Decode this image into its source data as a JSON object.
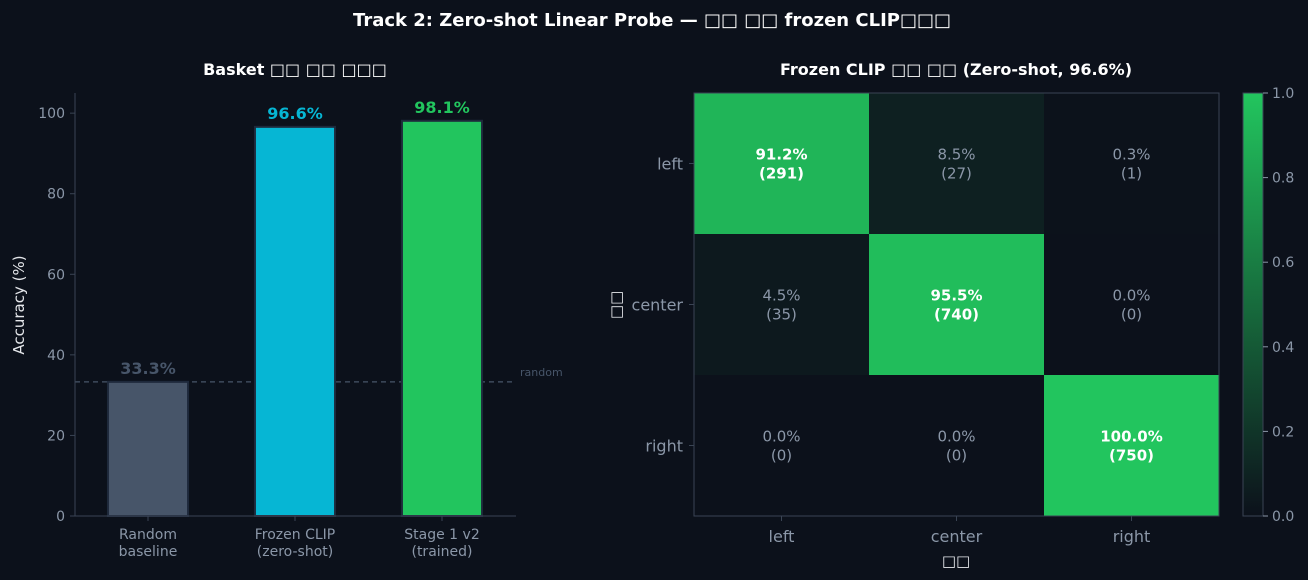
{
  "figure": {
    "suptitle": "Track 2: Zero-shot Linear Probe — □□ □□ frozen CLIP□□□"
  },
  "chart_data": [
    {
      "type": "bar",
      "title": "Basket □□ □□ □□□",
      "ylabel": "Accuracy (%)",
      "xlabel": "",
      "ylim": [
        0,
        105
      ],
      "yticks": [
        0,
        20,
        40,
        60,
        80,
        100
      ],
      "categories": [
        "Random\nbaseline",
        "Frozen CLIP\n(zero-shot)",
        "Stage 1 v2\n(trained)"
      ],
      "values": [
        33.3,
        96.6,
        98.1
      ],
      "value_labels": [
        "33.3%",
        "96.6%",
        "98.1%"
      ],
      "colors": [
        "#475569",
        "#06b6d4",
        "#22c55e"
      ],
      "reference_line": {
        "y": 33.3,
        "label": "random",
        "color": "#475569"
      },
      "grid": false
    },
    {
      "type": "heatmap",
      "title": "Frozen CLIP □□ □□ (Zero-shot, 96.6%)",
      "xlabel": "□□",
      "ylabel": "□□",
      "x_categories": [
        "left",
        "center",
        "right"
      ],
      "y_categories": [
        "left",
        "center",
        "right"
      ],
      "values": [
        [
          0.912,
          0.085,
          0.003
        ],
        [
          0.045,
          0.955,
          0.0
        ],
        [
          0.0,
          0.0,
          1.0
        ]
      ],
      "cell_text": [
        [
          "91.2%\n(291)",
          "8.5%\n(27)",
          "0.3%\n(1)"
        ],
        [
          "4.5%\n(35)",
          "95.5%\n(740)",
          "0.0%\n(0)"
        ],
        [
          "0.0%\n(0)",
          "0.0%\n(0)",
          "100.0%\n(750)"
        ]
      ],
      "colorbar": {
        "min": 0.0,
        "max": 1.0,
        "ticks": [
          "0.0",
          "0.2",
          "0.4",
          "0.6",
          "0.8",
          "1.0"
        ]
      },
      "colormap": [
        "#0c111b",
        "#22c55e"
      ]
    }
  ]
}
